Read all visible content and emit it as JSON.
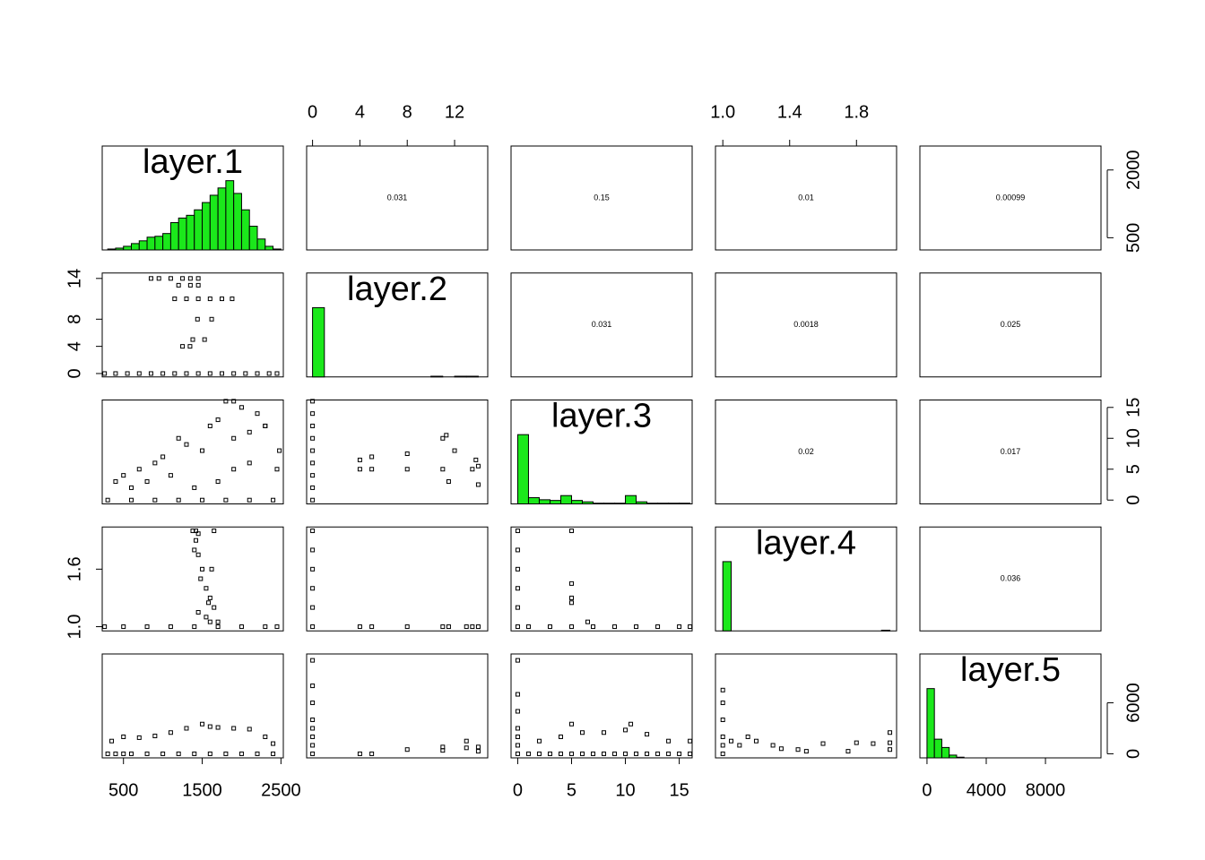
{
  "chart_data": {
    "type": "pairs",
    "hist_color": "#1be81b",
    "variables": [
      {
        "name": "layer.1",
        "lim": [
          230,
          2530
        ]
      },
      {
        "name": "layer.2",
        "lim": [
          -0.5,
          14.8
        ]
      },
      {
        "name": "layer.3",
        "lim": [
          -0.62,
          16.2
        ]
      },
      {
        "name": "layer.4",
        "lim": [
          0.956,
          2.04
        ]
      },
      {
        "name": "layer.5",
        "lim": [
          -480,
          11750
        ]
      }
    ],
    "histograms": [
      {
        "bins": [
          300,
          400,
          500,
          600,
          700,
          800,
          900,
          1000,
          1100,
          1200,
          1300,
          1400,
          1500,
          1600,
          1700,
          1800,
          1900,
          2000,
          2100,
          2200,
          2300,
          2400,
          2500
        ],
        "counts": [
          1,
          2,
          4,
          7,
          10,
          14,
          15,
          18,
          30,
          35,
          38,
          44,
          52,
          60,
          68,
          76,
          62,
          44,
          26,
          12,
          4,
          1
        ]
      },
      {
        "bins": [
          0,
          1,
          2,
          3,
          4,
          5,
          6,
          7,
          8,
          9,
          10,
          11,
          12,
          13,
          14
        ],
        "counts": [
          100,
          0,
          0,
          0,
          0,
          0,
          0,
          0,
          0,
          0,
          1,
          0,
          1,
          1
        ]
      },
      {
        "bins": [
          0,
          1,
          2,
          3,
          4,
          5,
          6,
          7,
          8,
          9,
          10,
          11,
          12,
          13,
          14,
          15,
          16
        ],
        "counts": [
          100,
          9,
          6,
          5,
          12,
          5,
          3,
          1,
          1,
          1,
          12,
          3,
          1,
          1,
          1,
          1
        ]
      },
      {
        "bins": [
          1,
          1.05,
          1.1,
          1.15,
          1.2,
          1.25,
          1.3,
          1.35,
          1.4,
          1.45,
          1.5,
          1.55,
          1.6,
          1.65,
          1.7,
          1.75,
          1.8,
          1.85,
          1.9,
          1.95,
          2
        ],
        "counts": [
          100,
          0,
          0,
          0,
          0,
          0,
          0,
          0,
          0,
          0,
          0,
          0,
          0,
          0,
          0,
          0,
          0,
          0,
          0,
          1
        ]
      },
      {
        "bins": [
          0,
          500,
          1000,
          1500,
          2000,
          2500,
          3000,
          3500,
          4000,
          4500,
          5000,
          5500,
          6000,
          6500,
          7000,
          7500,
          8000,
          8500,
          9000,
          9500,
          10000,
          10500,
          11000,
          11500
        ],
        "counts": [
          100,
          27,
          15,
          4,
          1,
          0,
          0,
          0,
          0,
          0,
          0,
          0,
          0,
          0,
          0,
          0,
          0,
          0,
          0,
          0,
          0,
          0,
          0
        ]
      }
    ],
    "correlations": [
      {
        "row": 0,
        "col": 1,
        "value": 0.031
      },
      {
        "row": 0,
        "col": 2,
        "value": 0.15
      },
      {
        "row": 0,
        "col": 3,
        "value": 0.01
      },
      {
        "row": 0,
        "col": 4,
        "value": 0.00099
      },
      {
        "row": 1,
        "col": 2,
        "value": 0.031
      },
      {
        "row": 1,
        "col": 3,
        "value": 0.0018
      },
      {
        "row": 1,
        "col": 4,
        "value": 0.025
      },
      {
        "row": 2,
        "col": 3,
        "value": 0.02
      },
      {
        "row": 2,
        "col": 4,
        "value": 0.017
      },
      {
        "row": 3,
        "col": 4,
        "value": 0.036
      }
    ],
    "scatter": [
      {
        "row": 1,
        "col": 0,
        "x": [
          260,
          400,
          550,
          700,
          850,
          1000,
          1150,
          1300,
          1450,
          1600,
          1750,
          1900,
          2050,
          2200,
          2350,
          2450,
          850,
          950,
          1100,
          1250,
          1350,
          1450,
          1200,
          1350,
          1450,
          1150,
          1300,
          1450,
          1600,
          1750,
          1880,
          1440,
          1620,
          1380,
          1530,
          1250,
          1345
        ],
        "y": [
          0,
          0,
          0,
          0,
          0,
          0,
          0,
          0,
          0,
          0,
          0,
          0,
          0,
          0,
          0,
          0,
          14,
          14,
          14,
          14,
          14,
          14,
          13,
          13,
          13,
          11,
          11,
          11,
          11,
          11,
          11,
          8,
          8,
          5,
          5,
          4,
          4
        ]
      },
      {
        "row": 2,
        "col": 0,
        "x": [
          300,
          600,
          900,
          1200,
          1500,
          1800,
          2100,
          2400,
          400,
          500,
          700,
          900,
          1000,
          1200,
          1300,
          1500,
          1600,
          1800,
          1900,
          2000,
          2200,
          2300,
          600,
          800,
          1100,
          1400,
          1700,
          1900,
          2100,
          1700,
          1900,
          2100,
          2300,
          2450,
          2480
        ],
        "y": [
          0,
          0,
          0,
          0,
          0,
          0,
          0,
          0,
          3,
          4,
          5,
          6,
          7,
          10,
          9,
          8,
          12,
          16,
          16,
          15,
          14,
          12,
          2,
          3,
          4,
          2,
          3,
          5,
          6,
          13,
          10,
          11,
          12,
          5,
          8
        ]
      },
      {
        "row": 2,
        "col": 1,
        "x": [
          0,
          0,
          0,
          0,
          0,
          0,
          0,
          0,
          0,
          4,
          4,
          5,
          5,
          8,
          8,
          11,
          11,
          11.3,
          11.5,
          12,
          13.5,
          13.8,
          14,
          14
        ],
        "y": [
          0,
          2,
          4,
          6,
          8,
          10,
          12,
          14,
          16,
          5,
          6.5,
          5,
          7,
          5,
          7.5,
          5,
          10,
          10.5,
          3,
          8,
          5,
          6.5,
          2.5,
          5.5
        ]
      },
      {
        "row": 3,
        "col": 0,
        "x": [
          260,
          500,
          800,
          1100,
          1400,
          1700,
          2000,
          2300,
          2450,
          1380,
          1420,
          1450,
          1650,
          1420,
          1400,
          1450,
          1500,
          1480,
          1550,
          1620,
          1600,
          1580,
          1650,
          1450,
          1550,
          1600,
          1700
        ],
        "y": [
          1,
          1,
          1,
          1,
          1,
          1,
          1,
          1,
          1,
          2,
          2,
          1.97,
          2,
          1.9,
          1.8,
          1.75,
          1.6,
          1.5,
          1.4,
          1.6,
          1.3,
          1.25,
          1.2,
          1.15,
          1.1,
          1.05,
          1.05
        ]
      },
      {
        "row": 3,
        "col": 1,
        "x": [
          0,
          0,
          0,
          0,
          0,
          0,
          4,
          5,
          8,
          11,
          11.5,
          13,
          13.5,
          14
        ],
        "y": [
          1,
          1.2,
          1.4,
          1.6,
          1.8,
          2,
          1,
          1,
          1,
          1,
          1,
          1,
          1,
          1
        ]
      },
      {
        "row": 3,
        "col": 2,
        "x": [
          0,
          0,
          0,
          0,
          0,
          0,
          1,
          3,
          5,
          7,
          9,
          11,
          13,
          15,
          16,
          5,
          5,
          5,
          5,
          6.5
        ],
        "y": [
          1,
          1.2,
          1.4,
          1.6,
          1.8,
          2,
          1,
          1,
          1,
          1,
          1,
          1,
          1,
          1,
          1,
          2,
          1.45,
          1.3,
          1.25,
          1.05
        ]
      },
      {
        "row": 4,
        "col": 0,
        "x": [
          300,
          400,
          500,
          600,
          800,
          1000,
          1200,
          1400,
          1600,
          1800,
          2000,
          2200,
          2400,
          350,
          500,
          700,
          900,
          1100,
          1300,
          1500,
          1600,
          1700,
          1900,
          2100,
          2300,
          2400
        ],
        "y": [
          0,
          0,
          0,
          0,
          0,
          0,
          0,
          0,
          0,
          0,
          0,
          0,
          0,
          1500,
          2000,
          1900,
          2100,
          2500,
          3000,
          3500,
          3200,
          3100,
          3000,
          2900,
          2000,
          1200
        ]
      },
      {
        "row": 4,
        "col": 1,
        "x": [
          0,
          0,
          0,
          0,
          0,
          0,
          0,
          0,
          4,
          5,
          8,
          11,
          11,
          13,
          13,
          14,
          14
        ],
        "y": [
          0,
          1000,
          2000,
          3000,
          4000,
          6000,
          8000,
          11000,
          0,
          0,
          500,
          400,
          800,
          1500,
          700,
          300,
          800
        ]
      },
      {
        "row": 4,
        "col": 2,
        "x": [
          0,
          0,
          0,
          0,
          0,
          0,
          0,
          1,
          2,
          3,
          4,
          5,
          6,
          7,
          8,
          9,
          10,
          11,
          12,
          13,
          14,
          15,
          16,
          2,
          4,
          6,
          8,
          10,
          12,
          14,
          16,
          5,
          10.5
        ],
        "y": [
          0,
          1000,
          2000,
          3000,
          5000,
          7000,
          11000,
          0,
          0,
          0,
          0,
          0,
          0,
          0,
          0,
          0,
          0,
          0,
          0,
          0,
          0,
          0,
          0,
          1500,
          2000,
          2500,
          2500,
          2800,
          2300,
          1500,
          1500,
          3500,
          3500
        ]
      },
      {
        "row": 4,
        "col": 3,
        "x": [
          1,
          1,
          1,
          1,
          1,
          1,
          1.05,
          1.1,
          1.15,
          1.2,
          1.3,
          1.35,
          1.45,
          1.5,
          1.6,
          1.75,
          1.8,
          1.9,
          2,
          2,
          2
        ],
        "y": [
          0,
          1000,
          2000,
          4000,
          6000,
          7500,
          1500,
          1000,
          2000,
          1500,
          1000,
          600,
          500,
          300,
          1200,
          300,
          1300,
          1200,
          500,
          1300,
          2500
        ]
      }
    ],
    "axes": [
      {
        "side": "top",
        "var": 1,
        "ticks": [
          0,
          4,
          8,
          12
        ]
      },
      {
        "side": "top",
        "var": 3,
        "ticks": [
          {
            "value": 1,
            "label": "1.0"
          },
          1.4,
          1.8
        ]
      },
      {
        "side": "bottom",
        "var": 0,
        "ticks": [
          500,
          1500,
          2500
        ]
      },
      {
        "side": "bottom",
        "var": 2,
        "ticks": [
          0,
          5,
          10,
          15
        ]
      },
      {
        "side": "bottom",
        "var": 4,
        "ticks": [
          0,
          4000,
          8000
        ]
      },
      {
        "side": "left",
        "var": 1,
        "ticks": [
          0,
          4,
          8,
          14
        ]
      },
      {
        "side": "left",
        "var": 3,
        "ticks": [
          {
            "value": 1,
            "label": "1.0"
          },
          1.6
        ]
      },
      {
        "side": "right",
        "var": 0,
        "ticks": [
          500,
          2000
        ]
      },
      {
        "side": "right",
        "var": 2,
        "ticks": [
          0,
          5,
          10,
          15
        ]
      },
      {
        "side": "right",
        "var": 4,
        "ticks": [
          0,
          6000
        ]
      }
    ]
  }
}
